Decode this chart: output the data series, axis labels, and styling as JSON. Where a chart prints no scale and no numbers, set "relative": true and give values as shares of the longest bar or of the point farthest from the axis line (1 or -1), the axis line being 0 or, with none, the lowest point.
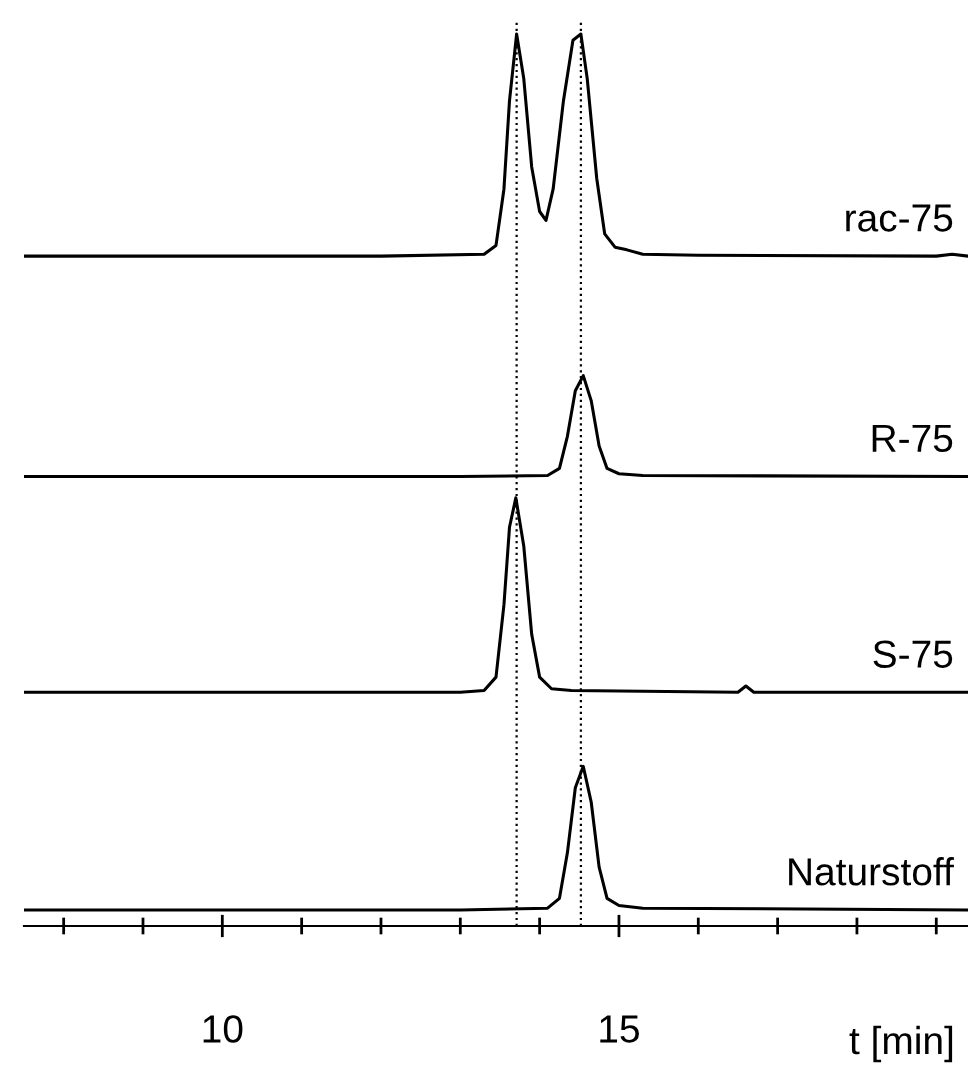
{
  "chart_data": {
    "type": "line",
    "relative": true,
    "tick_labels": "x",
    "xlim": [
      7.5,
      19.4
    ],
    "xlabel": "t [min]",
    "annotations": [
      "rac-75",
      "R-75",
      "S-75",
      "Naturstoff"
    ],
    "ref_lines": [
      {
        "axis": "x",
        "value": 13.71,
        "line_style": "dotted"
      },
      {
        "axis": "x",
        "value": 14.52,
        "line_style": "dotted"
      }
    ],
    "xticks": [
      {
        "value": 8,
        "label": null
      },
      {
        "value": 9,
        "label": null
      },
      10,
      {
        "value": 11,
        "label": null
      },
      {
        "value": 12,
        "label": null
      },
      {
        "value": 13,
        "label": null
      },
      {
        "value": 14,
        "label": null
      },
      15,
      {
        "value": 16,
        "label": null
      },
      {
        "value": 17,
        "label": null
      },
      {
        "value": 18,
        "label": null
      },
      {
        "value": 19,
        "label": null
      }
    ],
    "series": [
      {
        "color": "#000000",
        "x": [
          7.5,
          12,
          13.3,
          13.45,
          13.55,
          13.62,
          13.71,
          13.8,
          13.9,
          14.0,
          14.08,
          14.17,
          14.3,
          14.42,
          14.52,
          14.6,
          14.72,
          14.82,
          14.95,
          15.1,
          15.3,
          16,
          19.0,
          19.2,
          19.4
        ],
        "values": [
          0.751,
          0.751,
          0.753,
          0.763,
          0.826,
          0.925,
          1.0,
          0.95,
          0.851,
          0.801,
          0.791,
          0.826,
          0.925,
          0.993,
          1.0,
          0.95,
          0.838,
          0.776,
          0.761,
          0.758,
          0.753,
          0.752,
          0.751,
          0.753,
          0.751
        ]
      },
      {
        "color": "#000000",
        "x": [
          7.5,
          13.0,
          14.1,
          14.25,
          14.35,
          14.45,
          14.55,
          14.65,
          14.75,
          14.85,
          15.0,
          15.3,
          19.4
        ],
        "values": [
          0.504,
          0.504,
          0.505,
          0.513,
          0.549,
          0.6,
          0.617,
          0.589,
          0.538,
          0.513,
          0.507,
          0.505,
          0.504
        ]
      },
      {
        "color": "#000000",
        "x": [
          7.5,
          13.0,
          13.3,
          13.45,
          13.55,
          13.62,
          13.7,
          13.8,
          13.9,
          14.0,
          14.15,
          14.4,
          16.5,
          16.6,
          16.7,
          19.4
        ],
        "values": [
          0.262,
          0.262,
          0.264,
          0.279,
          0.36,
          0.447,
          0.48,
          0.426,
          0.327,
          0.279,
          0.266,
          0.264,
          0.262,
          0.269,
          0.262,
          0.262
        ]
      },
      {
        "color": "#000000",
        "x": [
          7.5,
          13.0,
          14.1,
          14.25,
          14.35,
          14.45,
          14.55,
          14.65,
          14.75,
          14.85,
          15.0,
          15.3,
          19.4
        ],
        "values": [
          0.018,
          0.018,
          0.02,
          0.031,
          0.082,
          0.155,
          0.179,
          0.139,
          0.066,
          0.031,
          0.023,
          0.02,
          0.018
        ]
      }
    ]
  }
}
